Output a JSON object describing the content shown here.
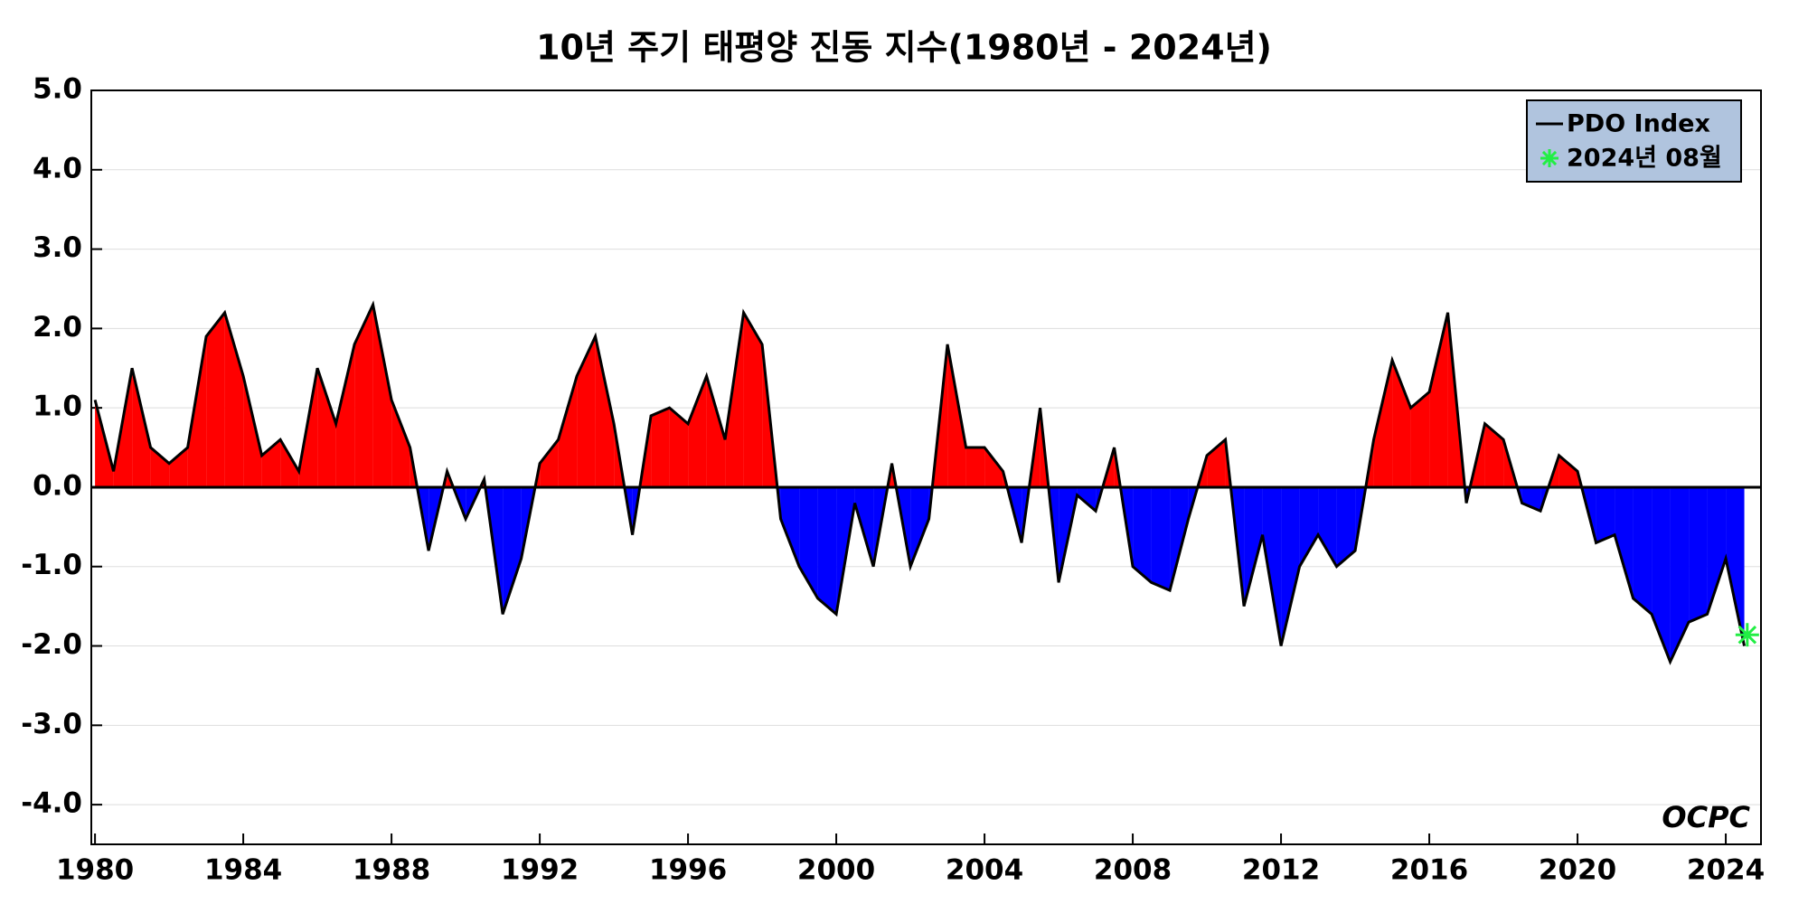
{
  "chart_data": {
    "type": "area",
    "title": "10년 주기 태평양 진동 지수(1980년 - 2024년)",
    "logo": "OCPC",
    "x": [
      1980,
      1980.5,
      1981,
      1981.5,
      1982,
      1982.5,
      1983,
      1983.5,
      1984,
      1984.5,
      1985,
      1985.5,
      1986,
      1986.5,
      1987,
      1987.5,
      1988,
      1988.5,
      1989,
      1989.5,
      1990,
      1990.5,
      1991,
      1991.5,
      1992,
      1992.5,
      1993,
      1993.5,
      1994,
      1994.5,
      1995,
      1995.5,
      1996,
      1996.5,
      1997,
      1997.5,
      1998,
      1998.5,
      1999,
      1999.5,
      2000,
      2000.5,
      2001,
      2001.5,
      2002,
      2002.5,
      2003,
      2003.5,
      2004,
      2004.5,
      2005,
      2005.5,
      2006,
      2006.5,
      2007,
      2007.5,
      2008,
      2008.5,
      2009,
      2009.5,
      2010,
      2010.5,
      2011,
      2011.5,
      2012,
      2012.5,
      2013,
      2013.5,
      2014,
      2014.5,
      2015,
      2015.5,
      2016,
      2016.5,
      2017,
      2017.5,
      2018,
      2018.5,
      2019,
      2019.5,
      2020,
      2020.5,
      2021,
      2021.5,
      2022,
      2022.5,
      2023,
      2023.5,
      2024,
      2024.5
    ],
    "series": [
      {
        "name": "PDO Index",
        "color": "#000000",
        "pos_color": "#ff0000",
        "neg_color": "#0000ff",
        "values": [
          1.1,
          0.2,
          1.5,
          0.5,
          0.3,
          0.5,
          1.9,
          2.2,
          1.4,
          0.4,
          0.6,
          0.2,
          1.5,
          0.8,
          1.8,
          2.3,
          1.1,
          0.5,
          -0.8,
          0.2,
          -0.4,
          0.1,
          -1.6,
          -0.9,
          0.3,
          0.6,
          1.4,
          1.9,
          0.8,
          -0.6,
          0.9,
          1.0,
          0.8,
          1.4,
          0.6,
          2.2,
          1.8,
          -0.4,
          -1.0,
          -1.4,
          -1.6,
          -0.2,
          -1.0,
          0.3,
          -1.0,
          -0.4,
          1.8,
          0.5,
          0.5,
          0.2,
          -0.7,
          1.0,
          -1.2,
          -0.1,
          -0.3,
          0.5,
          -1.0,
          -1.2,
          -1.3,
          -0.4,
          0.4,
          0.6,
          -1.5,
          -0.6,
          -2.0,
          -1.0,
          -0.6,
          -1.0,
          -0.8,
          0.6,
          1.6,
          1.0,
          1.2,
          2.2,
          -0.2,
          0.8,
          0.6,
          -0.2,
          -0.3,
          0.4,
          0.2,
          -0.7,
          -0.6,
          -1.4,
          -1.6,
          -2.2,
          -1.7,
          -1.6,
          -0.9,
          -2.0
        ]
      }
    ],
    "marker": {
      "name": "2024년 08월",
      "x": 2024.58,
      "value": -1.86,
      "color": "#22ee44"
    },
    "xlim": [
      1979.9,
      2024.95
    ],
    "ylim": [
      -4.5,
      5.0
    ],
    "xticks": [
      1980,
      1984,
      1988,
      1992,
      1996,
      2000,
      2004,
      2008,
      2012,
      2016,
      2020,
      2024
    ],
    "yticks": [
      {
        "value": -4,
        "label": "-4.0"
      },
      {
        "value": -3,
        "label": "-3.0"
      },
      {
        "value": -2,
        "label": "-2.0"
      },
      {
        "value": -1,
        "label": "-1.0"
      },
      {
        "value": 0,
        "label": "0.0"
      },
      {
        "value": 1,
        "label": "1.0"
      },
      {
        "value": 2,
        "label": "2.0"
      },
      {
        "value": 3,
        "label": "3.0"
      },
      {
        "value": 4,
        "label": "4.0"
      },
      {
        "value": 5,
        "label": "5.0"
      }
    ],
    "grid": true,
    "legend": "upper right"
  }
}
